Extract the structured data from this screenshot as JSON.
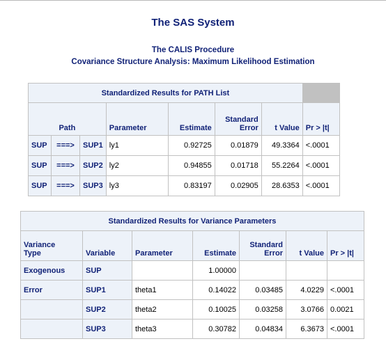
{
  "header": {
    "title": "The SAS System",
    "procedure": "The CALIS Procedure",
    "subtitle": "Covariance Structure Analysis: Maximum Likelihood Estimation"
  },
  "path_table": {
    "caption": "Standardized Results for PATH List",
    "headers": {
      "path": "Path",
      "parameter": "Parameter",
      "estimate": "Estimate",
      "std_error_line1": "Standard",
      "std_error_line2": "Error",
      "t_value": "t Value",
      "p_value": "Pr > |t|"
    },
    "rows": [
      {
        "from": "SUP",
        "arrow": "===>",
        "to": "SUP1",
        "parameter": "ly1",
        "estimate": "0.92725",
        "std_error": "0.01879",
        "t_value": "49.3364",
        "p_value": "<.0001"
      },
      {
        "from": "SUP",
        "arrow": "===>",
        "to": "SUP2",
        "parameter": "ly2",
        "estimate": "0.94855",
        "std_error": "0.01718",
        "t_value": "55.2264",
        "p_value": "<.0001"
      },
      {
        "from": "SUP",
        "arrow": "===>",
        "to": "SUP3",
        "parameter": "ly3",
        "estimate": "0.83197",
        "std_error": "0.02905",
        "t_value": "28.6353",
        "p_value": "<.0001"
      }
    ]
  },
  "variance_table": {
    "caption": "Standardized Results for Variance Parameters",
    "headers": {
      "variance_type_line1": "Variance",
      "variance_type_line2": "Type",
      "variable": "Variable",
      "parameter": "Parameter",
      "estimate": "Estimate",
      "std_error_line1": "Standard",
      "std_error_line2": "Error",
      "t_value": "t Value",
      "p_value": "Pr > |t|"
    },
    "rows": [
      {
        "type": "Exogenous",
        "variable": "SUP",
        "parameter": "",
        "estimate": "1.00000",
        "std_error": "",
        "t_value": "",
        "p_value": ""
      },
      {
        "type": "Error",
        "variable": "SUP1",
        "parameter": "theta1",
        "estimate": "0.14022",
        "std_error": "0.03485",
        "t_value": "4.0229",
        "p_value": "<.0001"
      },
      {
        "type": "",
        "variable": "SUP2",
        "parameter": "theta2",
        "estimate": "0.10025",
        "std_error": "0.03258",
        "t_value": "3.0766",
        "p_value": "0.0021"
      },
      {
        "type": "",
        "variable": "SUP3",
        "parameter": "theta3",
        "estimate": "0.30782",
        "std_error": "0.04834",
        "t_value": "6.3673",
        "p_value": "<.0001"
      }
    ]
  },
  "colors": {
    "header_text": "#112277",
    "header_background": "#edf2f9",
    "grid": "#c1c1c1",
    "cell_background": "#ffffff"
  }
}
